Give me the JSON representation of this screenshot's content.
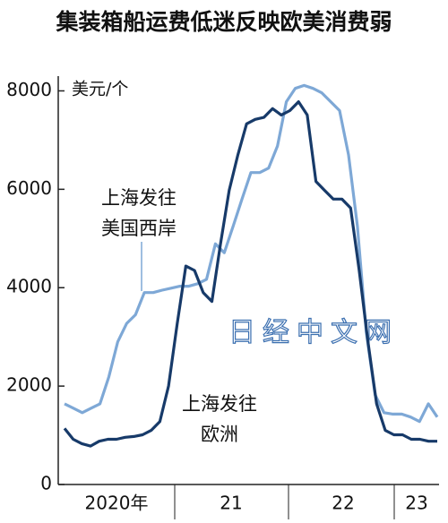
{
  "chart_data": {
    "type": "line",
    "title": "集装箱船运费低迷反映欧美消费弱",
    "y_label": "美元/个",
    "x_labels": [
      "2020年",
      "21",
      "22",
      "23"
    ],
    "ylim": [
      0,
      8300
    ],
    "yticks": [
      0,
      2000,
      4000,
      6000,
      8000
    ],
    "series": [
      {
        "name": [
          "上海发往",
          "美国西岸"
        ],
        "color": "#7ea8d6",
        "values": [
          1640,
          1550,
          1460,
          1550,
          1640,
          2190,
          2900,
          3270,
          3450,
          3900,
          3900,
          3950,
          3990,
          4030,
          4030,
          4080,
          4170,
          4890,
          4710,
          5250,
          5800,
          6340,
          6340,
          6430,
          6880,
          7780,
          8050,
          8110,
          8050,
          7960,
          7780,
          7600,
          6700,
          5250,
          3090,
          1820,
          1460,
          1430,
          1430,
          1370,
          1280,
          1640,
          1370
        ]
      },
      {
        "name": [
          "上海发往",
          "欧洲"
        ],
        "color": "#173a69",
        "values": [
          1140,
          920,
          830,
          780,
          880,
          920,
          920,
          960,
          975,
          1010,
          1100,
          1280,
          2000,
          3270,
          4440,
          4350,
          3900,
          3720,
          4890,
          5980,
          6700,
          7330,
          7420,
          7460,
          7640,
          7510,
          7600,
          7780,
          7510,
          6160,
          5980,
          5800,
          5800,
          5620,
          4350,
          2910,
          1640,
          1100,
          1010,
          1010,
          920,
          920,
          880,
          880
        ]
      }
    ],
    "watermark": "日经中文网"
  }
}
